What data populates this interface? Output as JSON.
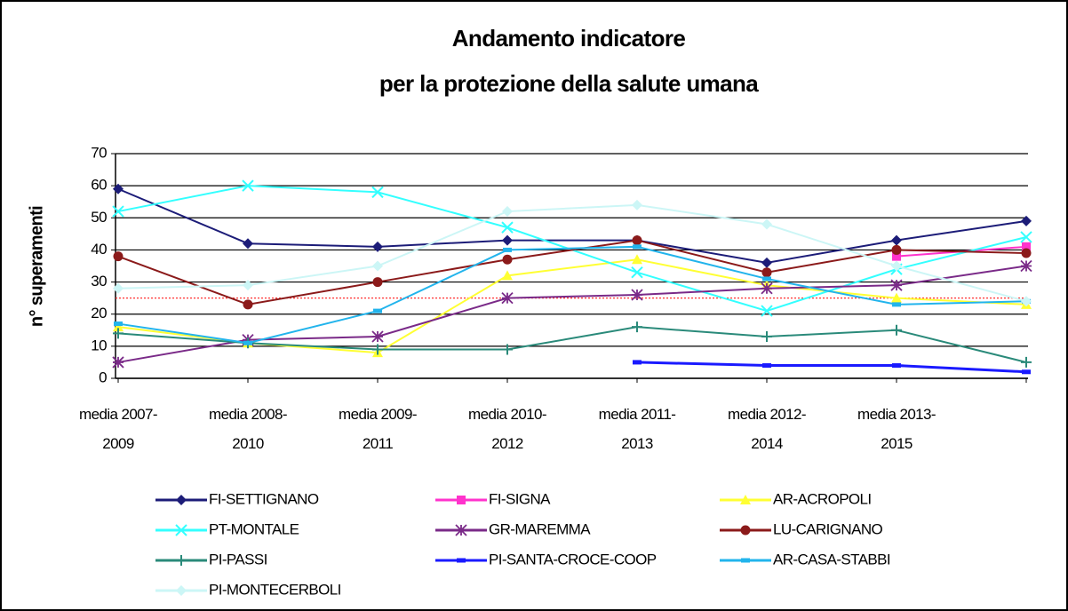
{
  "chart_data": {
    "type": "line",
    "title": "Andamento indicatore",
    "subtitle": "per la protezione della salute umana",
    "y_label": "n° superamenti",
    "categories": [
      "media 2007-2009",
      "media 2008-2010",
      "media 2009-2011",
      "media 2010-2012",
      "media 2011-2013",
      "media 2012-2014",
      "media 2013-2015",
      null
    ],
    "ylim": [
      0,
      70
    ],
    "yticks": [
      0,
      10,
      20,
      30,
      40,
      50,
      60,
      70
    ],
    "grid": true,
    "reference_line": {
      "value": 25,
      "color": "#ff3030"
    },
    "series": [
      {
        "name": "FI-SETTIGNANO",
        "color": "#1c1c78",
        "marker": "diamond",
        "values": [
          59,
          42,
          41,
          43,
          43,
          36,
          43,
          49
        ]
      },
      {
        "name": "FI-SIGNA",
        "color": "#ff33cc",
        "marker": "square",
        "values": [
          null,
          null,
          null,
          null,
          null,
          null,
          38,
          41
        ]
      },
      {
        "name": "AR-ACROPOLI",
        "color": "#ffff33",
        "marker": "triangle",
        "values": [
          16,
          11,
          8,
          32,
          37,
          29,
          25,
          23
        ]
      },
      {
        "name": "PT-MONTALE",
        "color": "#33ffff",
        "marker": "x",
        "values": [
          52,
          60,
          58,
          47,
          33,
          21,
          34,
          44
        ]
      },
      {
        "name": "GR-MAREMMA",
        "color": "#7a2a88",
        "marker": "star",
        "values": [
          5,
          12,
          13,
          25,
          26,
          28,
          29,
          35
        ]
      },
      {
        "name": "LU-CARIGNANO",
        "color": "#8b1a1a",
        "marker": "circle",
        "values": [
          38,
          23,
          30,
          37,
          43,
          33,
          40,
          39
        ]
      },
      {
        "name": "PI-PASSI",
        "color": "#2a8a7a",
        "marker": "plus",
        "values": [
          14,
          11,
          9,
          9,
          16,
          13,
          15,
          5
        ]
      },
      {
        "name": "PI-SANTA-CROCE-COOP",
        "color": "#1a1aff",
        "marker": "dash",
        "values": [
          null,
          null,
          null,
          null,
          5,
          4,
          4,
          2
        ]
      },
      {
        "name": "AR-CASA-STABBI",
        "color": "#22b4ec",
        "marker": "dash",
        "values": [
          17,
          11,
          21,
          40,
          41,
          31,
          23,
          24
        ]
      },
      {
        "name": "PI-MONTECERBOLI",
        "color": "#ccf6f6",
        "marker": "diamond",
        "values": [
          28,
          29,
          35,
          52,
          54,
          48,
          35,
          24
        ]
      }
    ]
  }
}
